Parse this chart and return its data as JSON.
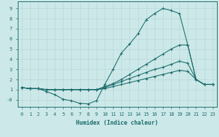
{
  "xlabel": "Humidex (Indice chaleur)",
  "bg_color": "#cce8e8",
  "line_color": "#1a6b6b",
  "grid_color": "#b8d8d8",
  "xlim": [
    -0.5,
    23.5
  ],
  "ylim": [
    -0.7,
    9.7
  ],
  "xticks": [
    0,
    1,
    2,
    3,
    4,
    5,
    6,
    7,
    8,
    9,
    10,
    11,
    12,
    13,
    14,
    15,
    16,
    17,
    18,
    19,
    20,
    21,
    22,
    23
  ],
  "yticks": [
    0,
    1,
    2,
    3,
    4,
    5,
    6,
    7,
    8,
    9
  ],
  "ytick_labels": [
    "-0",
    "1",
    "2",
    "3",
    "4",
    "5",
    "6",
    "7",
    "8",
    "9"
  ],
  "lines": [
    [
      1.2,
      1.1,
      1.1,
      0.8,
      0.5,
      0.05,
      -0.1,
      -0.35,
      -0.4,
      -0.1,
      1.5,
      3.0,
      4.6,
      5.5,
      6.5,
      7.9,
      8.5,
      9.0,
      8.8,
      8.5,
      5.4,
      2.0,
      1.5,
      1.5
    ],
    [
      1.2,
      1.1,
      1.1,
      1.0,
      1.0,
      1.0,
      1.0,
      1.0,
      1.0,
      1.0,
      1.3,
      1.6,
      2.0,
      2.5,
      3.0,
      3.5,
      4.0,
      4.5,
      5.0,
      5.4,
      5.4,
      2.0,
      1.5,
      1.5
    ],
    [
      1.2,
      1.1,
      1.1,
      1.0,
      1.0,
      1.0,
      1.0,
      1.0,
      1.0,
      1.0,
      1.2,
      1.5,
      1.8,
      2.1,
      2.4,
      2.7,
      3.0,
      3.2,
      3.5,
      3.8,
      3.6,
      2.0,
      1.5,
      1.5
    ],
    [
      1.2,
      1.1,
      1.1,
      1.0,
      1.0,
      1.0,
      1.0,
      1.0,
      1.0,
      1.0,
      1.1,
      1.3,
      1.5,
      1.7,
      1.9,
      2.1,
      2.3,
      2.5,
      2.7,
      2.9,
      2.8,
      2.0,
      1.5,
      1.5
    ]
  ]
}
